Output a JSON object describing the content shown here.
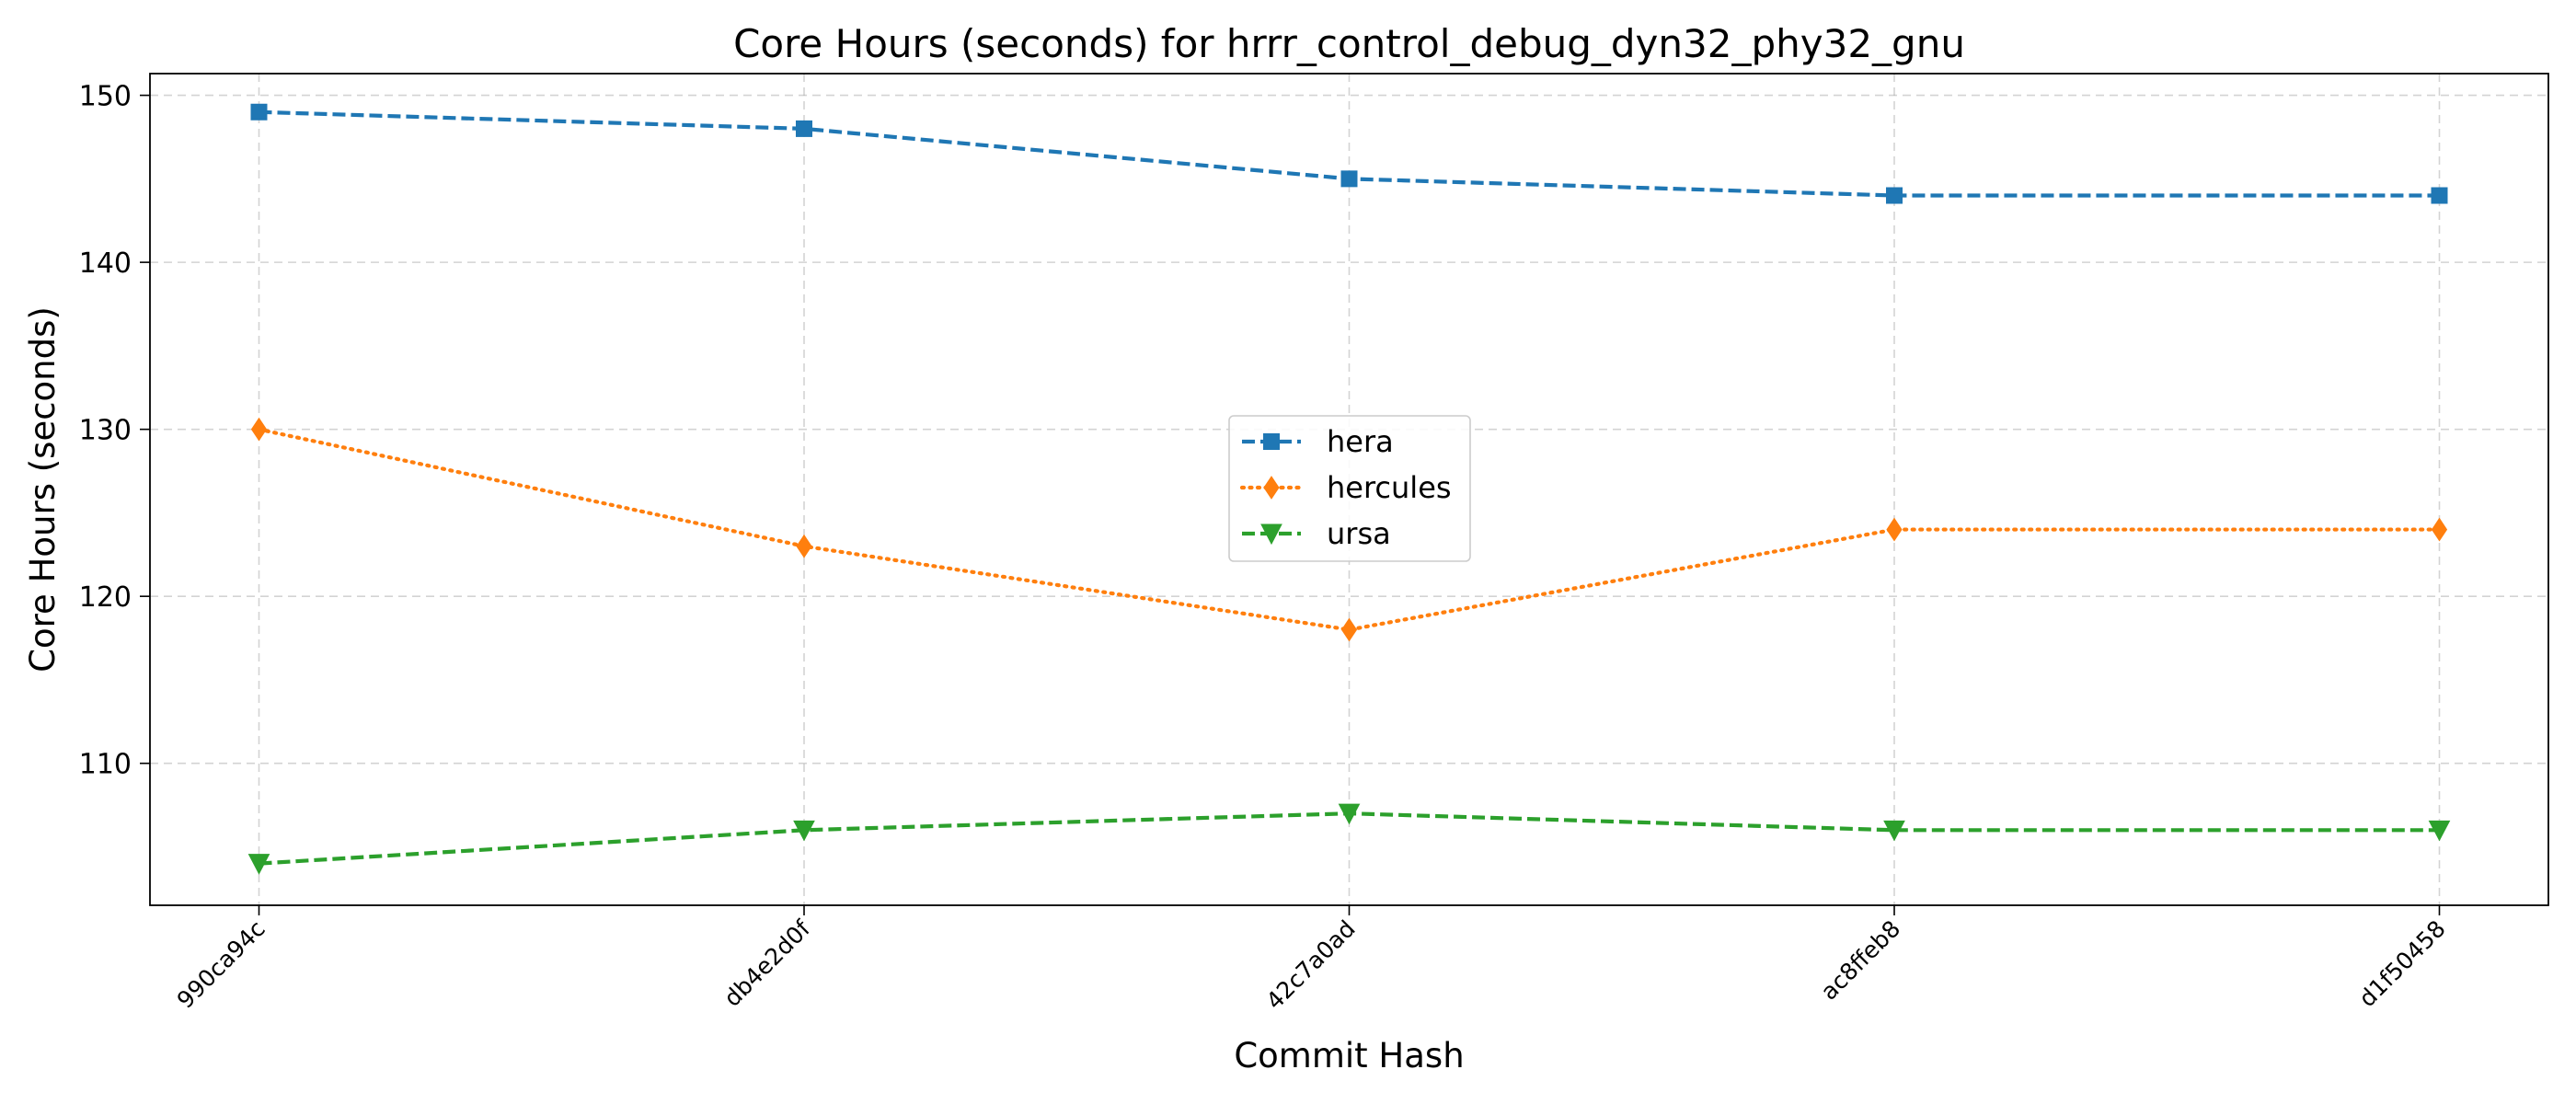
{
  "chart_data": {
    "type": "line",
    "title": "Core Hours (seconds) for hrrr_control_debug_dyn32_phy32_gnu",
    "xlabel": "Commit Hash",
    "ylabel": "Core Hours (seconds)",
    "categories": [
      "990ca94c",
      "db4e2d0f",
      "42c7a0ad",
      "ac8ffeb8",
      "d1f50458"
    ],
    "ylim": [
      101.5,
      151.3
    ],
    "yticks": [
      110,
      120,
      130,
      140,
      150
    ],
    "grid": true,
    "legend_position": "center",
    "series": [
      {
        "name": "hera",
        "values": [
          149,
          148,
          145,
          144,
          144
        ],
        "color": "#1f77b4",
        "line_style": "dashed",
        "marker": "square"
      },
      {
        "name": "hercules",
        "values": [
          130,
          123,
          118,
          124,
          124
        ],
        "color": "#ff7f0e",
        "line_style": "dotted",
        "marker": "thin-diamond"
      },
      {
        "name": "ursa",
        "values": [
          104,
          106,
          107,
          106,
          106
        ],
        "color": "#2ca02c",
        "line_style": "dashed",
        "marker": "triangle-down"
      }
    ]
  }
}
